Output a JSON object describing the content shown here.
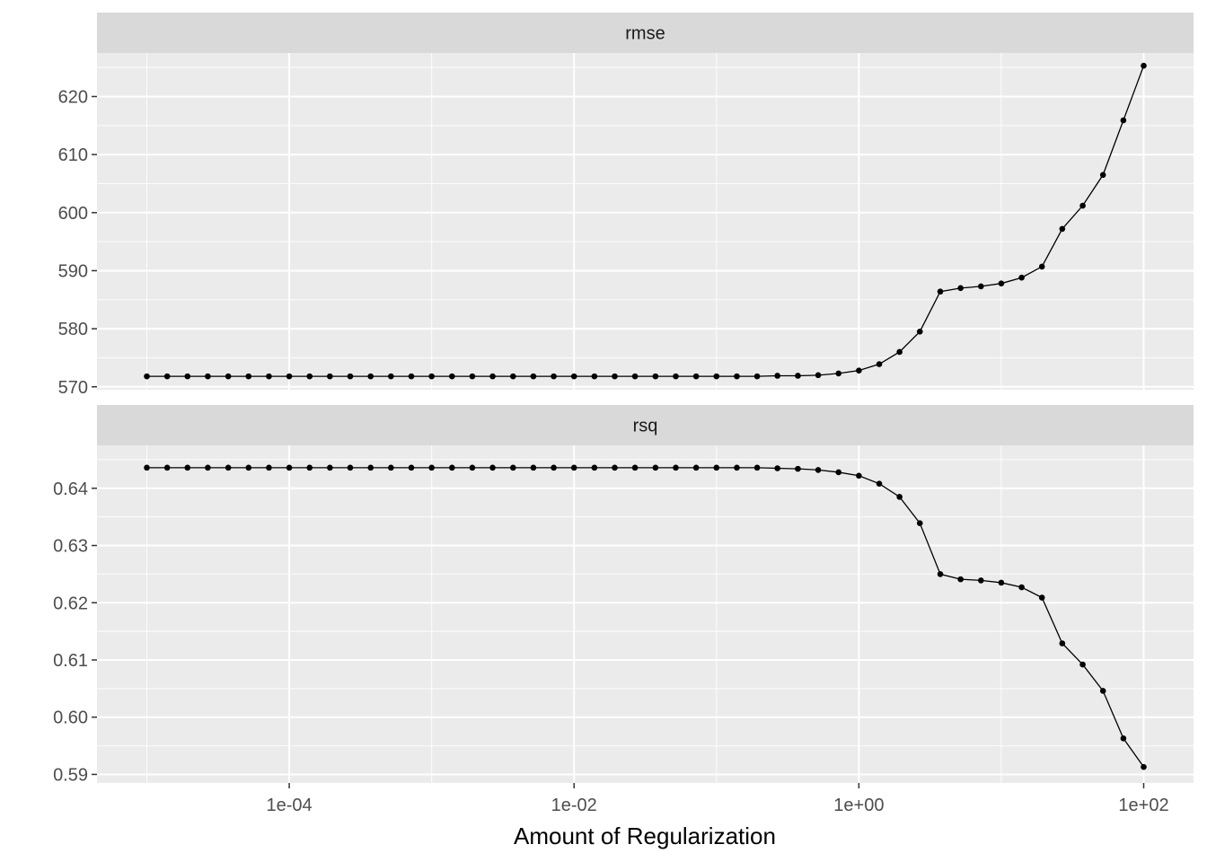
{
  "chart_data": {
    "type": "line",
    "xlabel": "Amount of Regularization",
    "x_scale": "log10",
    "x_ticks": [
      "1e-04",
      "1e-02",
      "1e+00",
      "1e+02"
    ],
    "x_tick_values": [
      0.0001,
      0.01,
      1,
      100
    ],
    "x": [
      1e-05,
      1.39e-05,
      1.93e-05,
      2.68e-05,
      3.73e-05,
      5.18e-05,
      7.2e-05,
      0.0001,
      0.000139,
      0.000193,
      0.000268,
      0.000373,
      0.000518,
      0.00072,
      0.001,
      0.00139,
      0.00193,
      0.00268,
      0.00373,
      0.00518,
      0.0072,
      0.01,
      0.0139,
      0.0193,
      0.0268,
      0.0373,
      0.0518,
      0.072,
      0.1,
      0.139,
      0.193,
      0.268,
      0.373,
      0.518,
      0.72,
      1.0,
      1.39,
      1.93,
      2.68,
      3.73,
      5.18,
      7.2,
      10.0,
      13.9,
      19.3,
      26.8,
      37.3,
      51.8,
      72.0,
      100.0
    ],
    "panels": [
      {
        "strip": "rmse",
        "y_ticks": [
          "570",
          "580",
          "590",
          "600",
          "610",
          "620"
        ],
        "y_tick_values": [
          570,
          580,
          590,
          600,
          610,
          620
        ],
        "ylim": [
          569.5,
          627.5
        ],
        "values": [
          571.8,
          571.8,
          571.8,
          571.8,
          571.8,
          571.8,
          571.8,
          571.8,
          571.8,
          571.8,
          571.8,
          571.8,
          571.8,
          571.8,
          571.8,
          571.8,
          571.8,
          571.8,
          571.8,
          571.8,
          571.8,
          571.8,
          571.8,
          571.8,
          571.8,
          571.8,
          571.8,
          571.8,
          571.8,
          571.8,
          571.8,
          571.9,
          571.9,
          572.0,
          572.3,
          572.8,
          573.9,
          576.0,
          579.5,
          586.4,
          587.0,
          587.3,
          587.8,
          588.8,
          590.7,
          597.2,
          601.2,
          606.5,
          615.9,
          625.3
        ]
      },
      {
        "strip": "rsq",
        "y_ticks": [
          "0.59",
          "0.60",
          "0.61",
          "0.62",
          "0.63",
          "0.64"
        ],
        "y_tick_values": [
          0.59,
          0.6,
          0.61,
          0.62,
          0.63,
          0.64
        ],
        "ylim": [
          0.5885,
          0.6475
        ],
        "values": [
          0.6436,
          0.6436,
          0.6436,
          0.6436,
          0.6436,
          0.6436,
          0.6436,
          0.6436,
          0.6436,
          0.6436,
          0.6436,
          0.6436,
          0.6436,
          0.6436,
          0.6436,
          0.6436,
          0.6436,
          0.6436,
          0.6436,
          0.6436,
          0.6436,
          0.6436,
          0.6436,
          0.6436,
          0.6436,
          0.6436,
          0.6436,
          0.6436,
          0.6436,
          0.6436,
          0.6436,
          0.6435,
          0.6434,
          0.6432,
          0.6428,
          0.6422,
          0.6408,
          0.6385,
          0.6339,
          0.625,
          0.6241,
          0.6239,
          0.6235,
          0.6227,
          0.6209,
          0.6129,
          0.6092,
          0.6046,
          0.5963,
          0.5913
        ]
      }
    ],
    "grid": true,
    "legend": "none",
    "colors": {
      "line": "#000000",
      "panel": "#EBEBEB",
      "strip": "#D9D9D9",
      "grid": "#FFFFFF"
    }
  }
}
